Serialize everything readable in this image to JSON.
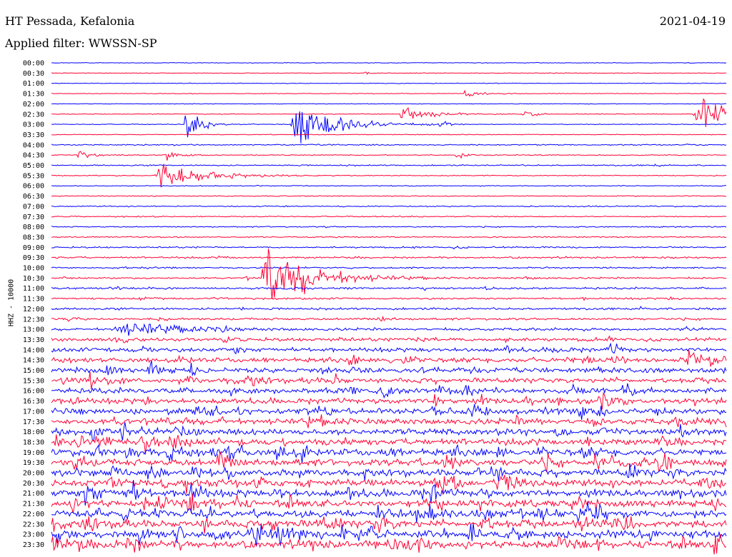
{
  "header": {
    "station": "HT Pessada, Kefalonia",
    "filter": "Applied filter: WWSSN-SP",
    "date": "2021-04-19"
  },
  "chart_data": {
    "type": "line",
    "subtype": "helicorder",
    "ylabel": "HHZ - 10000",
    "colors": [
      "#0000ff",
      "#ff0033"
    ],
    "rows": [
      "00:00",
      "00:30",
      "01:00",
      "01:30",
      "02:00",
      "02:30",
      "03:00",
      "03:30",
      "04:00",
      "04:30",
      "05:00",
      "05:30",
      "06:00",
      "06:30",
      "07:00",
      "07:30",
      "08:00",
      "08:30",
      "09:00",
      "09:30",
      "10:00",
      "10:30",
      "11:00",
      "11:30",
      "12:00",
      "12:30",
      "13:00",
      "13:30",
      "14:00",
      "14:30",
      "15:00",
      "15:30",
      "16:00",
      "16:30",
      "17:00",
      "17:30",
      "18:00",
      "18:30",
      "19:00",
      "19:30",
      "20:00",
      "20:30",
      "21:00",
      "21:30",
      "22:00",
      "22:30",
      "23:00",
      "23:30"
    ],
    "noise_level": [
      0.3,
      0.25,
      0.3,
      0.3,
      0.3,
      0.35,
      0.4,
      0.4,
      0.9,
      0.6,
      0.9,
      0.6,
      0.5,
      0.6,
      0.8,
      0.8,
      0.8,
      0.9,
      1.2,
      1.5,
      1.3,
      1.5,
      1.8,
      1.6,
      1.8,
      2.0,
      2.6,
      3.2,
      4.2,
      4.5,
      5.0,
      5.2,
      5.4,
      5.6,
      6.0,
      6.2,
      6.4,
      6.6,
      7.0,
      7.0,
      7.2,
      7.4,
      7.5,
      7.6,
      7.8,
      7.8,
      8.0,
      8.0
    ],
    "events": [
      {
        "row": 1,
        "t": 0.465,
        "amp": 3,
        "dur": 0.004
      },
      {
        "row": 3,
        "t": 0.612,
        "amp": 8,
        "dur": 0.01
      },
      {
        "row": 5,
        "t": 0.52,
        "amp": 10,
        "dur": 0.02
      },
      {
        "row": 5,
        "t": 0.7,
        "amp": 4,
        "dur": 0.01
      },
      {
        "row": 5,
        "t": 0.96,
        "amp": 22,
        "dur": 0.03
      },
      {
        "row": 6,
        "t": 0.2,
        "amp": 16,
        "dur": 0.012
      },
      {
        "row": 6,
        "t": 0.363,
        "amp": 30,
        "dur": 0.03
      },
      {
        "row": 6,
        "t": 0.425,
        "amp": 6,
        "dur": 0.01
      },
      {
        "row": 6,
        "t": 0.575,
        "amp": 7,
        "dur": 0.006
      },
      {
        "row": 9,
        "t": 0.04,
        "amp": 7,
        "dur": 0.01
      },
      {
        "row": 9,
        "t": 0.17,
        "amp": 7,
        "dur": 0.008
      },
      {
        "row": 9,
        "t": 0.6,
        "amp": 6,
        "dur": 0.006
      },
      {
        "row": 11,
        "t": 0.16,
        "amp": 20,
        "dur": 0.03
      },
      {
        "row": 21,
        "t": 0.32,
        "amp": 55,
        "dur": 0.03
      },
      {
        "row": 26,
        "t": 0.1,
        "amp": 9,
        "dur": 0.035
      },
      {
        "row": 29,
        "t": 0.94,
        "amp": 14,
        "dur": 0.02
      }
    ]
  }
}
